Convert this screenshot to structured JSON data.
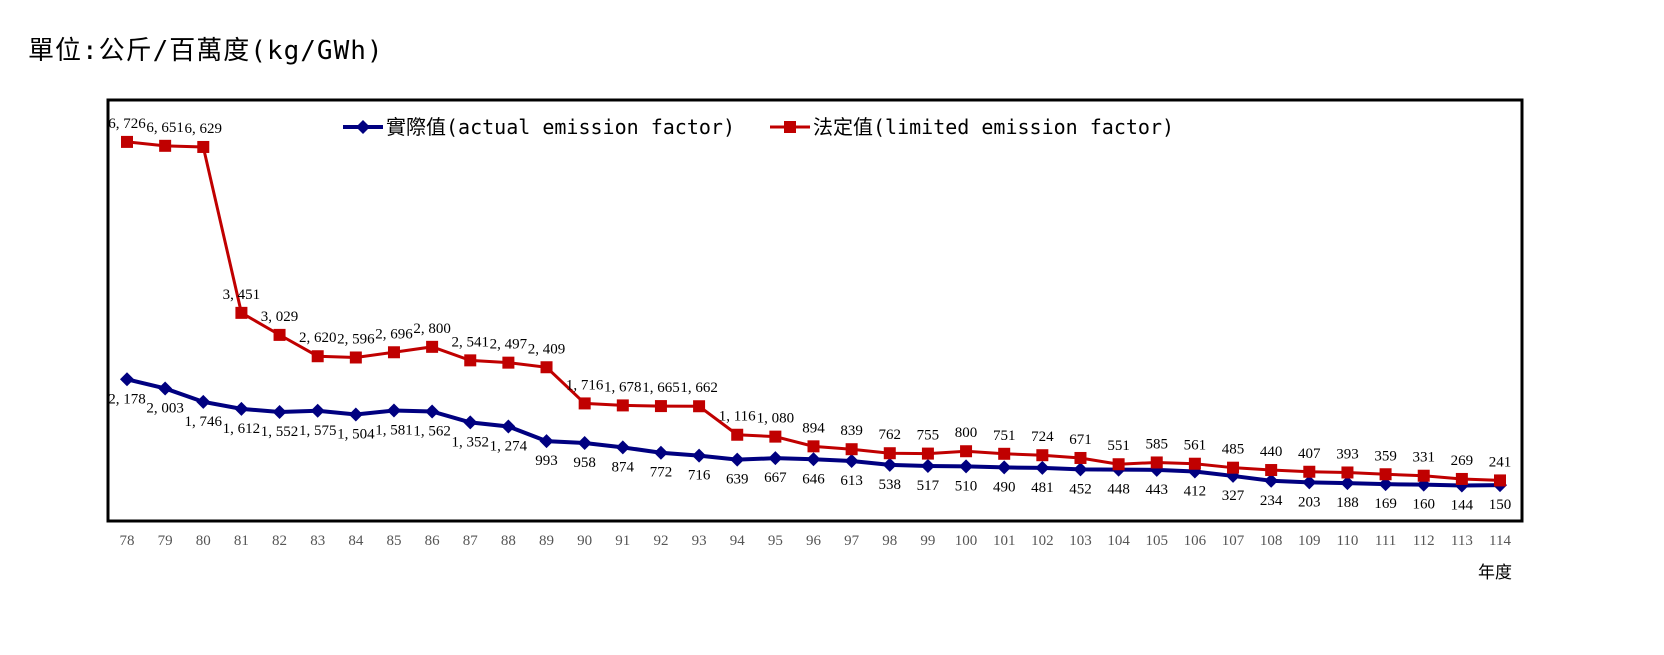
{
  "unit_label": "單位:公斤/百萬度(kg/GWh)",
  "chart_data": {
    "type": "line",
    "title": "",
    "xlabel": "年度",
    "ylabel": "",
    "ylim": [
      0,
      8000
    ],
    "grid": false,
    "legend_position": "top",
    "categories": [
      "78",
      "79",
      "80",
      "81",
      "82",
      "83",
      "84",
      "85",
      "86",
      "87",
      "88",
      "89",
      "90",
      "91",
      "92",
      "93",
      "94",
      "95",
      "96",
      "97",
      "98",
      "99",
      "100",
      "101",
      "102",
      "103",
      "104",
      "105",
      "106",
      "107",
      "108",
      "109",
      "110",
      "111",
      "112",
      "113",
      "114"
    ],
    "series": [
      {
        "name": "實際值(actual emission factor)",
        "color": "#000080",
        "marker": "diamond",
        "values": [
          2178,
          2003,
          1746,
          1612,
          1552,
          1575,
          1504,
          1581,
          1562,
          1352,
          1274,
          993,
          958,
          874,
          772,
          716,
          639,
          667,
          646,
          613,
          538,
          517,
          510,
          490,
          481,
          452,
          448,
          443,
          412,
          327,
          234,
          203,
          188,
          169,
          160,
          144,
          150
        ]
      },
      {
        "name": "法定值(limited emission factor)",
        "color": "#C00000",
        "marker": "square",
        "values": [
          6726,
          6651,
          6629,
          3451,
          3029,
          2620,
          2596,
          2696,
          2800,
          2541,
          2497,
          2409,
          1716,
          1678,
          1665,
          1662,
          1116,
          1080,
          894,
          839,
          762,
          755,
          800,
          751,
          724,
          671,
          551,
          585,
          561,
          485,
          440,
          407,
          393,
          359,
          331,
          269,
          241
        ]
      }
    ]
  }
}
